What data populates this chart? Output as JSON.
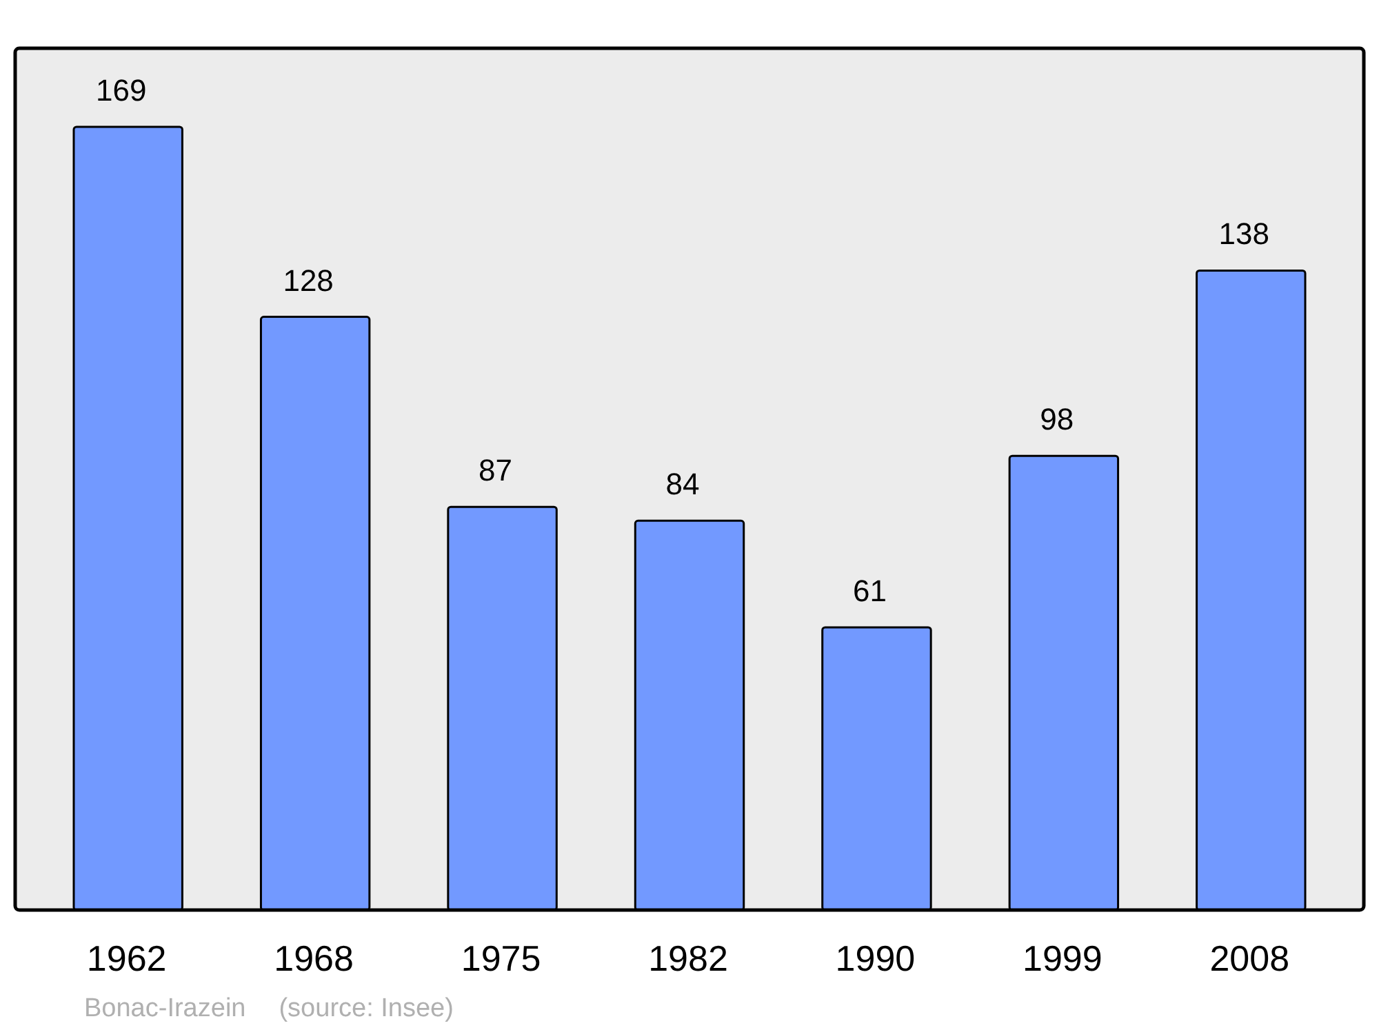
{
  "chart_data": {
    "type": "bar",
    "categories": [
      "1962",
      "1968",
      "1975",
      "1982",
      "1990",
      "1999",
      "2008"
    ],
    "values": [
      169,
      128,
      87,
      84,
      61,
      98,
      138
    ],
    "color": "#7299ff",
    "data_labels": true,
    "annotations": [
      "Bonac-Irazein",
      "(source: Insee)"
    ]
  }
}
